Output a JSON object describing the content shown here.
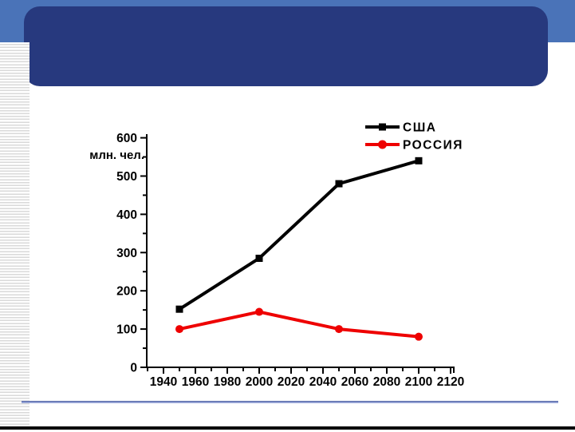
{
  "slide": {
    "title_placeholder": "",
    "accent_bar_color": "#4a73b8",
    "title_box_color": "#27397e",
    "separator_color": "#5f6fae",
    "bottom_border_color": "#000000",
    "stripe_color": "#d9d9d9"
  },
  "chart_data": {
    "type": "line",
    "title": "",
    "xlabel": "",
    "ylabel": "млн. чел.",
    "xlim": [
      1930,
      2122
    ],
    "ylim": [
      0,
      620
    ],
    "x_ticks_major": [
      1940,
      1960,
      1980,
      2000,
      2020,
      2040,
      2060,
      2080,
      2100,
      2120
    ],
    "x_ticks_minor": [
      1930,
      1950,
      1970,
      1990,
      2010,
      2030,
      2050,
      2070,
      2090,
      2110
    ],
    "y_ticks_major": [
      0,
      100,
      200,
      300,
      400,
      500,
      600
    ],
    "y_ticks_minor": [
      50,
      150,
      250,
      350,
      450,
      550
    ],
    "grid": false,
    "legend_position": "top-right",
    "x": [
      1950,
      2000,
      2050,
      2100
    ],
    "series": [
      {
        "name": "США",
        "color": "#000000",
        "marker": "square",
        "values": [
          152,
          285,
          480,
          540
        ]
      },
      {
        "name": "РОССИЯ",
        "color": "#ee0000",
        "marker": "circle",
        "values": [
          100,
          145,
          100,
          80
        ]
      }
    ]
  }
}
